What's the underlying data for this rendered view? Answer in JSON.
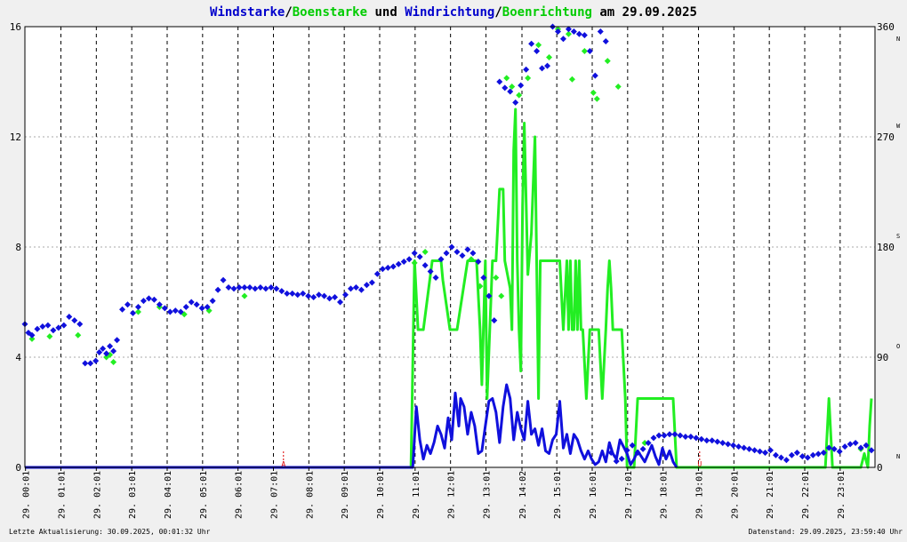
{
  "title": {
    "parts": [
      {
        "text": "Windstarke",
        "color": "#0000cc"
      },
      {
        "text": "/",
        "color": "#000000"
      },
      {
        "text": "Boenstarke",
        "color": "#00cc00"
      },
      {
        "text": " und ",
        "color": "#000000"
      },
      {
        "text": "Windrichtung",
        "color": "#0000cc"
      },
      {
        "text": "/",
        "color": "#000000"
      },
      {
        "text": "Boenrichtung",
        "color": "#00cc00"
      },
      {
        "text": " am 29.09.2025",
        "color": "#000000"
      }
    ]
  },
  "footer": {
    "left": "Letzte Aktualisierung: 30.09.2025, 00:01:32 Uhr",
    "right": "Datenstand: 29.09.2025, 23:59:40 Uhr"
  },
  "colors": {
    "wind": "#1010dd",
    "gust": "#22ee22",
    "grid": "#aaaaaa",
    "background": "#ffffff",
    "marker": "#dd0000"
  },
  "chart_data": {
    "type": "line",
    "x_unit": "hour of day",
    "xlim": [
      0,
      24
    ],
    "ylim_left": [
      0,
      16
    ],
    "ylim_right": [
      0,
      360
    ],
    "left_ticks": [
      0,
      4,
      8,
      12,
      16
    ],
    "right_ticks": [
      {
        "value": 0,
        "label": "0",
        "dir": "N"
      },
      {
        "value": 90,
        "label": "90",
        "dir": "O"
      },
      {
        "value": 180,
        "label": "180",
        "dir": "S"
      },
      {
        "value": 270,
        "label": "270",
        "dir": "W"
      },
      {
        "value": 360,
        "label": "360",
        "dir": "N"
      }
    ],
    "x_tick_labels": [
      {
        "day": "29.",
        "time": "00:01"
      },
      {
        "day": "29.",
        "time": "01:01"
      },
      {
        "day": "29.",
        "time": "02:01"
      },
      {
        "day": "29.",
        "time": "03:01"
      },
      {
        "day": "29.",
        "time": "04:01"
      },
      {
        "day": "29.",
        "time": "05:01"
      },
      {
        "day": "29.",
        "time": "06:01"
      },
      {
        "day": "29.",
        "time": "07:01"
      },
      {
        "day": "29.",
        "time": "08:01"
      },
      {
        "day": "29.",
        "time": "09:01"
      },
      {
        "day": "29.",
        "time": "10:01"
      },
      {
        "day": "29.",
        "time": "11:01"
      },
      {
        "day": "29.",
        "time": "12:01"
      },
      {
        "day": "29.",
        "time": "13:01"
      },
      {
        "day": "29.",
        "time": "14:02"
      },
      {
        "day": "29.",
        "time": "15:01"
      },
      {
        "day": "29.",
        "time": "16:01"
      },
      {
        "day": "29.",
        "time": "17:01"
      },
      {
        "day": "29.",
        "time": "18:01"
      },
      {
        "day": "29.",
        "time": "19:01"
      },
      {
        "day": "29.",
        "time": "20:01"
      },
      {
        "day": "29.",
        "time": "21:01"
      },
      {
        "day": "29.",
        "time": "22:01"
      },
      {
        "day": "29.",
        "time": "23:01"
      }
    ],
    "markers": [
      {
        "x": 7.3,
        "label": "A"
      },
      {
        "x": 19.05,
        "label": "U"
      }
    ],
    "series": [
      {
        "name": "Boenstarke",
        "kind": "line",
        "axis": "left",
        "color": "#22ee22",
        "x": [
          0,
          10.9,
          11.0,
          11.1,
          11.25,
          11.5,
          11.75,
          11.8,
          12.0,
          12.2,
          12.5,
          12.75,
          12.85,
          12.9,
          13.0,
          13.05,
          13.2,
          13.3,
          13.4,
          13.5,
          13.55,
          13.7,
          13.75,
          13.8,
          13.85,
          13.9,
          13.95,
          14.0,
          14.05,
          14.1,
          14.2,
          14.3,
          14.4,
          14.5,
          14.55,
          14.6,
          14.65,
          14.7,
          14.8,
          14.95,
          15.0,
          15.1,
          15.2,
          15.3,
          15.35,
          15.4,
          15.45,
          15.5,
          15.55,
          15.6,
          15.65,
          15.7,
          15.75,
          15.85,
          15.95,
          16.0,
          16.1,
          16.2,
          16.3,
          16.4,
          16.45,
          16.5,
          16.55,
          16.6,
          16.7,
          16.85,
          16.95,
          17.0,
          17.1,
          17.2,
          17.3,
          17.5,
          17.8,
          18.0,
          18.2,
          18.3,
          18.4,
          18.5,
          22.6,
          22.7,
          22.8,
          22.9,
          23.0,
          23.6,
          23.7,
          23.8,
          23.85,
          23.9
        ],
        "y": [
          0,
          0,
          7.5,
          5.0,
          5.0,
          7.5,
          7.5,
          6.8,
          5.0,
          5.0,
          7.5,
          7.5,
          5.0,
          3.0,
          7.5,
          2.5,
          7.5,
          7.5,
          10.1,
          10.1,
          7.5,
          6.5,
          5.0,
          11.5,
          13.0,
          7.5,
          5.0,
          3.5,
          9.5,
          12.5,
          7.0,
          8.5,
          12.0,
          2.5,
          7.5,
          7.5,
          7.5,
          7.5,
          7.5,
          7.5,
          7.5,
          7.5,
          5.0,
          7.5,
          5.0,
          7.5,
          5.0,
          5.0,
          7.5,
          5.0,
          7.5,
          5.0,
          5.0,
          2.5,
          5.0,
          5.0,
          5.0,
          5.0,
          2.5,
          5.0,
          6.5,
          7.5,
          6.5,
          5.0,
          5.0,
          5.0,
          2.5,
          0,
          0,
          0,
          2.5,
          2.5,
          2.5,
          2.5,
          2.5,
          2.5,
          0,
          0,
          0,
          2.5,
          0,
          0,
          0,
          0,
          0.5,
          0,
          1.5,
          2.5
        ]
      },
      {
        "name": "Windstarke",
        "kind": "line",
        "axis": "left",
        "color": "#1010dd",
        "x": [
          0,
          10.95,
          11.05,
          11.15,
          11.25,
          11.35,
          11.45,
          11.55,
          11.65,
          11.75,
          11.85,
          11.95,
          12.05,
          12.15,
          12.25,
          12.3,
          12.4,
          12.5,
          12.6,
          12.7,
          12.8,
          12.9,
          13.0,
          13.1,
          13.2,
          13.3,
          13.4,
          13.5,
          13.6,
          13.7,
          13.8,
          13.9,
          14.0,
          14.1,
          14.2,
          14.3,
          14.4,
          14.5,
          14.6,
          14.7,
          14.8,
          14.9,
          15.0,
          15.1,
          15.2,
          15.3,
          15.4,
          15.5,
          15.6,
          15.7,
          15.8,
          15.9,
          16.0,
          16.1,
          16.2,
          16.3,
          16.4,
          16.5,
          16.6,
          16.7,
          16.8,
          17.0,
          17.1,
          17.2,
          17.3,
          17.4,
          17.5,
          17.6,
          17.7,
          17.8,
          17.9,
          18.0,
          18.1,
          18.2,
          18.3,
          18.4
        ],
        "y": [
          0,
          0,
          2.2,
          1.0,
          0.3,
          0.8,
          0.5,
          0.9,
          1.5,
          1.2,
          0.7,
          1.8,
          1.0,
          2.7,
          1.5,
          2.5,
          2.2,
          1.2,
          2.0,
          1.5,
          0.5,
          0.6,
          1.5,
          2.4,
          2.5,
          2.0,
          0.9,
          2.2,
          3.0,
          2.5,
          1.0,
          2.0,
          1.4,
          1.0,
          2.4,
          1.2,
          1.4,
          0.8,
          1.4,
          0.6,
          0.5,
          1.0,
          1.2,
          2.4,
          0.7,
          1.2,
          0.5,
          1.2,
          1.0,
          0.6,
          0.3,
          0.6,
          0.3,
          0.1,
          0.2,
          0.6,
          0.2,
          0.9,
          0.5,
          0.3,
          1.0,
          0.5,
          0.1,
          0.3,
          0.6,
          0.4,
          0.2,
          0.5,
          0.8,
          0.4,
          0.1,
          0.7,
          0.3,
          0.6,
          0.2,
          0.0
        ]
      },
      {
        "name": "Boenrichtung",
        "kind": "scatter",
        "axis": "right",
        "color": "#22ee22",
        "x": [
          0.2,
          0.7,
          1.5,
          2.3,
          2.4,
          2.5,
          3.2,
          3.8,
          4.5,
          5.2,
          6.2,
          11.0,
          11.3,
          12.6,
          12.85,
          13.3,
          13.45,
          13.6,
          13.75,
          13.95,
          14.2,
          14.5,
          14.8,
          15.05,
          15.35,
          15.45,
          15.8,
          16.05,
          16.15,
          16.45,
          16.75,
          17.5,
          23.6
        ],
        "y": [
          105,
          107,
          108,
          90,
          92,
          86,
          127,
          131,
          125,
          128,
          140,
          167,
          176,
          170,
          148,
          155,
          140,
          318,
          311,
          304,
          318,
          345,
          335,
          358,
          354,
          317,
          340,
          306,
          301,
          332,
          311,
          20,
          15
        ]
      },
      {
        "name": "Windrichtung",
        "kind": "scatter",
        "axis": "right",
        "color": "#1010dd",
        "x": [
          0.0,
          0.1,
          0.2,
          0.35,
          0.5,
          0.65,
          0.8,
          0.95,
          1.1,
          1.25,
          1.4,
          1.55,
          1.7,
          1.85,
          2.0,
          2.1,
          2.2,
          2.3,
          2.4,
          2.5,
          2.6,
          2.75,
          2.9,
          3.05,
          3.2,
          3.35,
          3.5,
          3.65,
          3.8,
          3.95,
          4.1,
          4.25,
          4.4,
          4.55,
          4.7,
          4.85,
          5.0,
          5.15,
          5.3,
          5.45,
          5.6,
          5.75,
          5.9,
          6.05,
          6.2,
          6.35,
          6.5,
          6.65,
          6.8,
          6.95,
          7.1,
          7.25,
          7.4,
          7.55,
          7.7,
          7.85,
          8.0,
          8.15,
          8.3,
          8.45,
          8.6,
          8.75,
          8.9,
          9.05,
          9.2,
          9.35,
          9.5,
          9.65,
          9.8,
          9.95,
          10.1,
          10.25,
          10.4,
          10.55,
          10.7,
          10.85,
          11.0,
          11.15,
          11.3,
          11.45,
          11.6,
          11.75,
          11.9,
          12.05,
          12.2,
          12.35,
          12.5,
          12.65,
          12.8,
          12.95,
          13.1,
          13.25,
          13.4,
          13.55,
          13.7,
          13.85,
          14.0,
          14.15,
          14.3,
          14.45,
          14.6,
          14.75,
          14.9,
          15.05,
          15.2,
          15.35,
          15.5,
          15.65,
          15.8,
          15.95,
          16.1,
          16.25,
          16.4,
          16.55,
          16.7,
          16.85,
          17.0,
          17.15,
          17.3,
          17.45,
          17.6,
          17.75,
          17.9,
          18.05,
          18.2,
          18.35,
          18.5,
          18.65,
          18.8,
          18.95,
          19.1,
          19.25,
          19.4,
          19.55,
          19.7,
          19.85,
          20.0,
          20.15,
          20.3,
          20.45,
          20.6,
          20.75,
          20.9,
          21.05,
          21.2,
          21.35,
          21.5,
          21.65,
          21.8,
          21.95,
          22.1,
          22.25,
          22.4,
          22.55,
          22.7,
          22.85,
          23.0,
          23.15,
          23.3,
          23.45,
          23.6,
          23.75,
          23.9
        ],
        "y": [
          117,
          110,
          108,
          113,
          115,
          116,
          112,
          114,
          116,
          123,
          120,
          117,
          85,
          85,
          87,
          94,
          97,
          93,
          99,
          95,
          104,
          129,
          133,
          126,
          131,
          136,
          138,
          137,
          133,
          130,
          127,
          128,
          127,
          131,
          135,
          133,
          130,
          131,
          136,
          145,
          153,
          147,
          146,
          147,
          147,
          147,
          146,
          147,
          146,
          147,
          146,
          144,
          142,
          142,
          141,
          142,
          140,
          139,
          141,
          140,
          138,
          139,
          135,
          141,
          146,
          147,
          145,
          149,
          151,
          158,
          162,
          163,
          164,
          166,
          168,
          170,
          175,
          172,
          165,
          160,
          155,
          170,
          175,
          180,
          176,
          173,
          178,
          175,
          168,
          155,
          140,
          120,
          315,
          310,
          307,
          298,
          312,
          325,
          346,
          340,
          326,
          328,
          360,
          356,
          350,
          358,
          356,
          354,
          353,
          340,
          320,
          356,
          348,
          12,
          5,
          7,
          14,
          18,
          12,
          15,
          20,
          24,
          26,
          26,
          27,
          27,
          26,
          25,
          25,
          24,
          23,
          22,
          22,
          21,
          20,
          19,
          18,
          17,
          16,
          15,
          14,
          13,
          12,
          14,
          10,
          8,
          6,
          10,
          12,
          9,
          8,
          10,
          11,
          12,
          16,
          15,
          13,
          17,
          19,
          20,
          16,
          18,
          14
        ]
      }
    ]
  }
}
